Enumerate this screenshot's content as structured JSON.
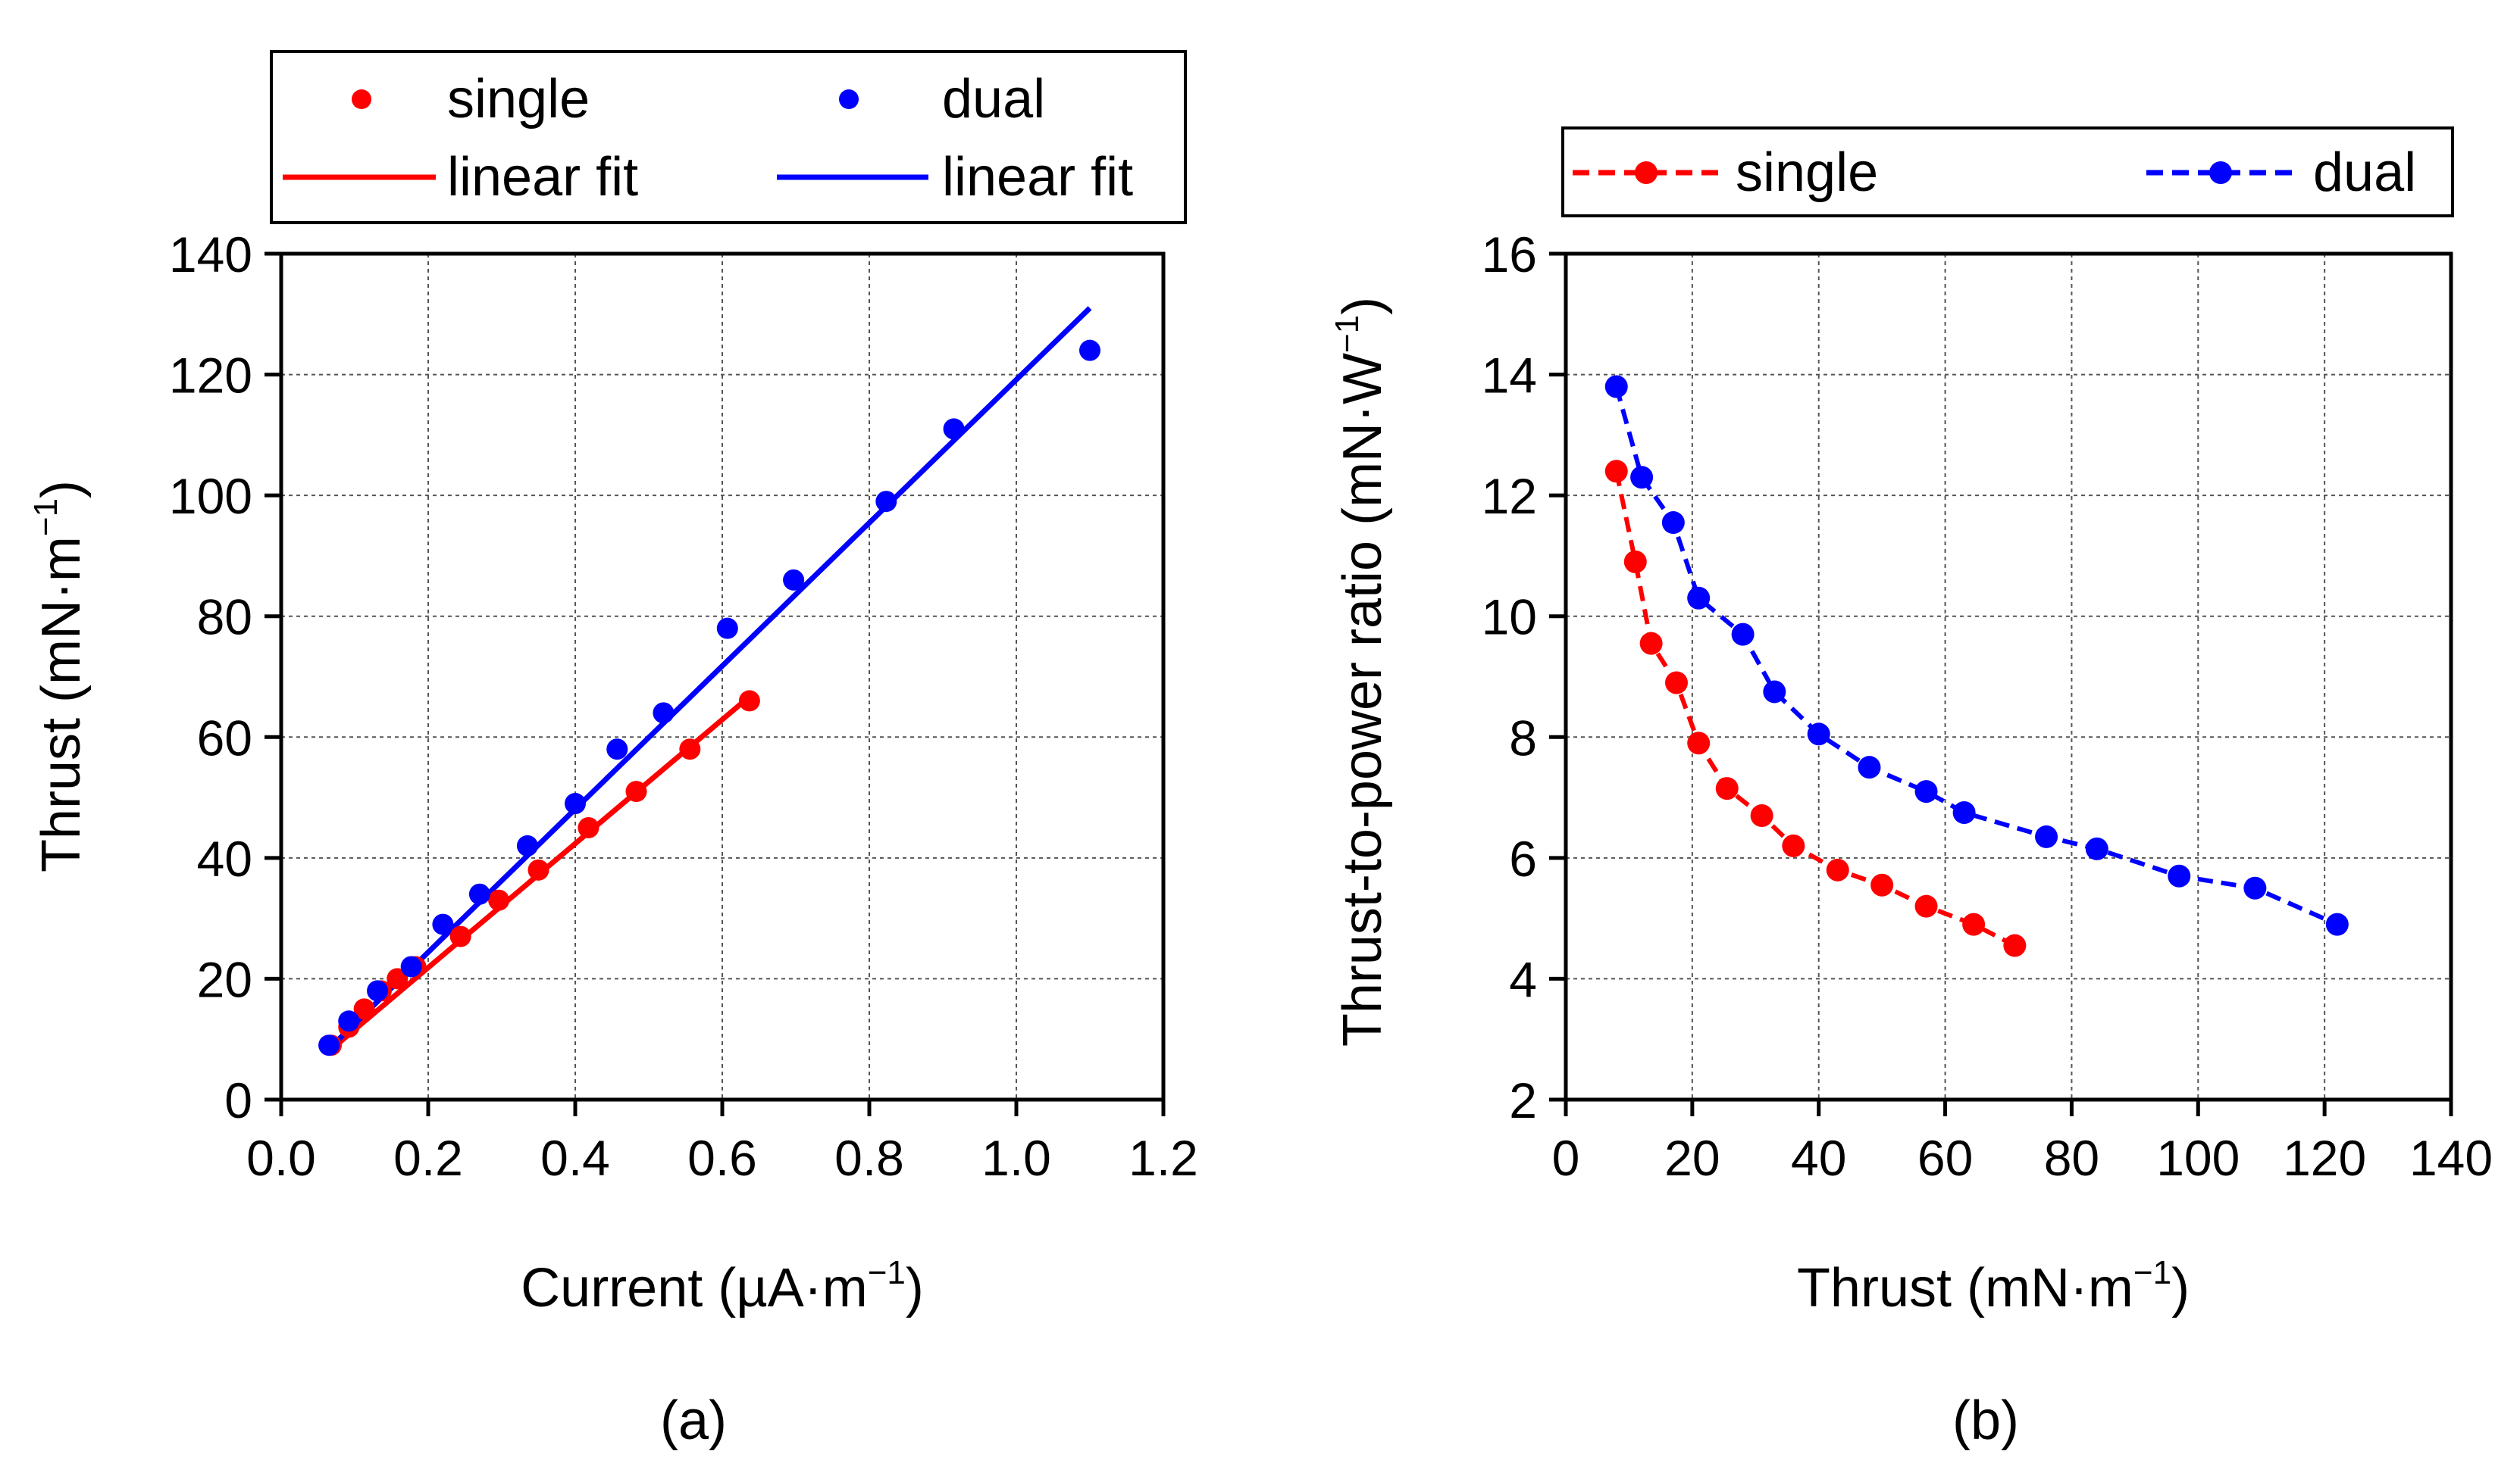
{
  "chart_data": [
    {
      "type": "scatter",
      "panel": "(a)",
      "xlabel": "Current (µA·m",
      "xlabel_sup": "−1",
      "xlabel_end": ")",
      "ylabel": "Thrust (mN·m",
      "ylabel_sup": "−1",
      "ylabel_end": ")",
      "xlim": [
        0.0,
        1.2
      ],
      "ylim": [
        0,
        140
      ],
      "xticks": [
        "0.0",
        "0.2",
        "0.4",
        "0.6",
        "0.8",
        "1.0",
        "1.2"
      ],
      "yticks": [
        "0",
        "20",
        "40",
        "60",
        "80",
        "100",
        "120",
        "140"
      ],
      "grid": true,
      "legend_position": "top",
      "series": [
        {
          "name": "single",
          "color": "#ff0000",
          "x": [
            0.068,
            0.092,
            0.113,
            0.136,
            0.158,
            0.183,
            0.244,
            0.296,
            0.35,
            0.418,
            0.483,
            0.556,
            0.637
          ],
          "y": [
            9,
            12,
            15,
            18,
            20,
            22,
            27,
            33,
            38,
            45,
            51,
            58,
            66
          ]
        },
        {
          "name": "dual",
          "color": "#0000ff",
          "x": [
            0.065,
            0.092,
            0.131,
            0.177,
            0.22,
            0.27,
            0.335,
            0.4,
            0.457,
            0.52,
            0.607,
            0.697,
            0.823,
            0.915,
            1.1
          ],
          "y": [
            9,
            13,
            18,
            22,
            29,
            34,
            42,
            49,
            58,
            64,
            78,
            86,
            99,
            111,
            124
          ]
        },
        {
          "name": "linear fit",
          "role": "fit for single",
          "color": "#ff0000",
          "x": [
            0.065,
            0.64
          ],
          "y": [
            8,
            67
          ]
        },
        {
          "name": "linear fit",
          "role": "fit for dual",
          "color": "#0000ff",
          "x": [
            0.07,
            1.1
          ],
          "y": [
            9,
            131
          ]
        }
      ]
    },
    {
      "type": "line",
      "panel": "(b)",
      "xlabel": "Thrust (mN·m",
      "xlabel_sup": "−1",
      "xlabel_end": ")",
      "ylabel": "Thrust-to-power ratio (mN·W",
      "ylabel_sup": "−1",
      "ylabel_end": ")",
      "xlim": [
        0,
        140
      ],
      "ylim": [
        2,
        16
      ],
      "xticks": [
        "0",
        "20",
        "40",
        "60",
        "80",
        "100",
        "120",
        "140"
      ],
      "yticks": [
        "2",
        "4",
        "6",
        "8",
        "10",
        "12",
        "14",
        "16"
      ],
      "grid": true,
      "legend_position": "top",
      "series": [
        {
          "name": "single",
          "color": "#ff0000",
          "style": "dashed with markers",
          "x": [
            8,
            11,
            13.5,
            17.5,
            21,
            25.5,
            31,
            36,
            43,
            50,
            57,
            64.5,
            71
          ],
          "y": [
            12.4,
            10.9,
            9.55,
            8.9,
            7.9,
            7.15,
            6.7,
            6.2,
            5.8,
            5.55,
            5.2,
            4.9,
            4.55
          ]
        },
        {
          "name": "dual",
          "color": "#0000ff",
          "style": "dashed with markers",
          "x": [
            8,
            12,
            17,
            21,
            28,
            33,
            40,
            48,
            57,
            63,
            76,
            84,
            97,
            109,
            122
          ],
          "y": [
            13.8,
            12.3,
            11.55,
            10.3,
            9.7,
            8.75,
            8.05,
            7.5,
            7.1,
            6.75,
            6.35,
            6.15,
            5.7,
            5.5,
            4.9
          ]
        }
      ]
    }
  ]
}
